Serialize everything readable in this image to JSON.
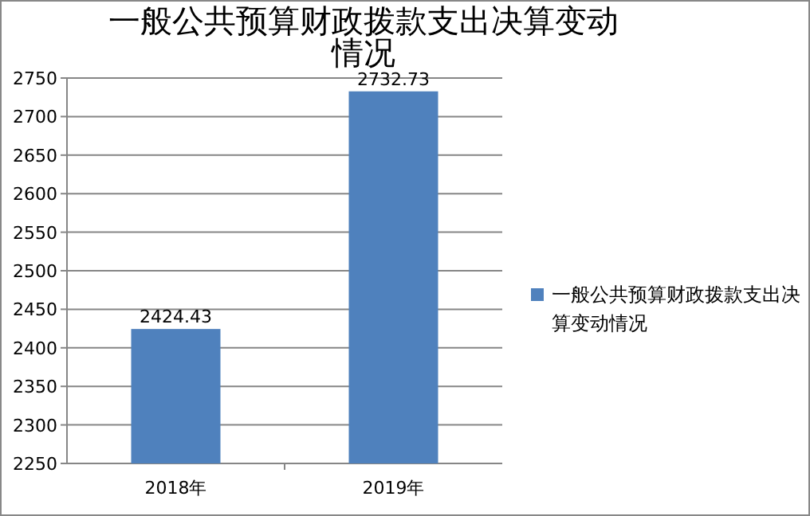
{
  "chart_data": {
    "type": "bar",
    "title": "一般公共预算财政拨款支出决算变动情况",
    "categories": [
      "2018年",
      "2019年"
    ],
    "series": [
      {
        "name": "一般公共预算财政拨款支出决算变动情况",
        "color": "#4f81bd",
        "values": [
          2424.43,
          2732.73
        ]
      }
    ],
    "ylim": [
      2250,
      2750
    ],
    "yticks": [
      2250,
      2300,
      2350,
      2400,
      2450,
      2500,
      2550,
      2600,
      2650,
      2700,
      2750
    ],
    "grid": "y",
    "legend": "right",
    "data_labels": true
  }
}
